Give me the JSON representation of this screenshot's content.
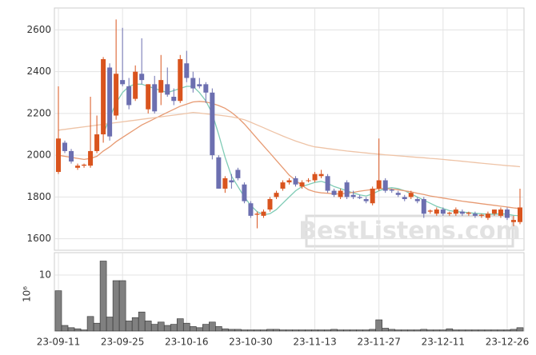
{
  "chart_data": {
    "type": "candlestick",
    "watermark": "BestListens.com",
    "categories": [
      "23-09-11",
      null,
      null,
      null,
      null,
      null,
      null,
      null,
      null,
      null,
      "23-09-25",
      null,
      null,
      null,
      null,
      null,
      null,
      null,
      null,
      null,
      "23-10-16",
      null,
      null,
      null,
      null,
      null,
      null,
      null,
      null,
      null,
      "23-10-30",
      null,
      null,
      null,
      null,
      null,
      null,
      null,
      null,
      null,
      "23-11-13",
      null,
      null,
      null,
      null,
      null,
      null,
      null,
      null,
      null,
      "23-11-27",
      null,
      null,
      null,
      null,
      null,
      null,
      null,
      null,
      null,
      "23-12-11",
      null,
      null,
      null,
      null,
      null,
      null,
      null,
      null,
      null,
      "23-12-26",
      null,
      null
    ],
    "open": [
      1920,
      2060,
      2020,
      1940,
      1950,
      1950,
      2020,
      2100,
      2420,
      2190,
      2360,
      2330,
      2270,
      2390,
      2220,
      2340,
      2300,
      2340,
      2280,
      2260,
      2440,
      2370,
      2340,
      2340,
      2300,
      1990,
      1840,
      1880,
      1930,
      1860,
      1770,
      1715,
      1710,
      1740,
      1800,
      1840,
      1870,
      1890,
      1850,
      1880,
      1880,
      1900,
      1900,
      1830,
      1800,
      1870,
      1810,
      1800,
      1790,
      1770,
      1840,
      1880,
      1835,
      1820,
      1800,
      1800,
      1790,
      1790,
      1730,
      1720,
      1740,
      1720,
      1720,
      1730,
      1720,
      1720,
      1710,
      1700,
      1720,
      1710,
      1740,
      1680,
      1680
    ],
    "high": [
      2330,
      2070,
      2030,
      1960,
      1960,
      2280,
      2190,
      2470,
      2440,
      2650,
      2610,
      2370,
      2430,
      2560,
      2340,
      2380,
      2480,
      2420,
      2320,
      2480,
      2500,
      2400,
      2370,
      2350,
      2320,
      2000,
      1900,
      1910,
      1940,
      1870,
      1780,
      1730,
      1740,
      1800,
      1830,
      1880,
      1890,
      1900,
      1880,
      1890,
      1920,
      1930,
      1910,
      1840,
      1840,
      1880,
      1830,
      1810,
      1800,
      1850,
      2080,
      1890,
      1840,
      1830,
      1810,
      1830,
      1800,
      1800,
      1740,
      1750,
      1750,
      1730,
      1750,
      1740,
      1730,
      1730,
      1720,
      1730,
      1740,
      1750,
      1750,
      1710,
      1840
    ],
    "low": [
      1910,
      2010,
      1960,
      1930,
      1940,
      1940,
      2010,
      2060,
      2070,
      2170,
      2330,
      2220,
      2260,
      2340,
      2200,
      2200,
      2240,
      2280,
      2240,
      2250,
      2350,
      2300,
      2320,
      2250,
      1980,
      1840,
      1820,
      1840,
      1880,
      1770,
      1700,
      1650,
      1700,
      1730,
      1790,
      1830,
      1860,
      1850,
      1840,
      1870,
      1870,
      1890,
      1820,
      1800,
      1790,
      1790,
      1790,
      1790,
      1770,
      1760,
      1830,
      1820,
      1820,
      1800,
      1780,
      1790,
      1770,
      1700,
      1720,
      1710,
      1710,
      1710,
      1710,
      1710,
      1710,
      1700,
      1700,
      1690,
      1710,
      1700,
      1690,
      1660,
      1670
    ],
    "close": [
      2080,
      2020,
      1970,
      1950,
      1955,
      2020,
      2100,
      2460,
      2090,
      2390,
      2340,
      2240,
      2400,
      2360,
      2340,
      2210,
      2360,
      2290,
      2260,
      2460,
      2370,
      2320,
      2330,
      2300,
      2000,
      1840,
      1890,
      1870,
      1890,
      1780,
      1710,
      1720,
      1730,
      1790,
      1820,
      1870,
      1880,
      1860,
      1870,
      1880,
      1910,
      1910,
      1830,
      1810,
      1830,
      1800,
      1800,
      1795,
      1780,
      1840,
      1880,
      1830,
      1830,
      1810,
      1790,
      1820,
      1780,
      1720,
      1735,
      1740,
      1720,
      1725,
      1740,
      1720,
      1725,
      1710,
      1715,
      1720,
      1740,
      1740,
      1700,
      1690,
      1750
    ],
    "up_color": "#d9541e",
    "down_color": "#6c6fb0",
    "ylim": [
      1545,
      2705
    ],
    "yticks": [
      1600,
      1800,
      2000,
      2200,
      2400,
      2600
    ],
    "grid": true,
    "moving_averages": [
      {
        "color": "#7fcbb5",
        "values": [
          null,
          null,
          null,
          null,
          null,
          null,
          null,
          2100,
          2180,
          2250,
          2300,
          2330,
          2340,
          2340,
          2330,
          2320,
          2310,
          2300,
          2310,
          2320,
          2330,
          2330,
          2300,
          2260,
          2200,
          2100,
          1990,
          1900,
          1850,
          1800,
          1760,
          1730,
          1715,
          1720,
          1740,
          1770,
          1800,
          1830,
          1850,
          1860,
          1870,
          1875,
          1865,
          1850,
          1840,
          1830,
          1820,
          1810,
          1805,
          1815,
          1830,
          1840,
          1845,
          1840,
          1830,
          1815,
          1800,
          1785,
          1770,
          1755,
          1745,
          1735,
          1730,
          1728,
          1725,
          1722,
          1720,
          1718,
          1718,
          1720,
          1718,
          1712,
          1710
        ]
      },
      {
        "color": "#e79a72",
        "values": [
          2000,
          1995,
          1990,
          1985,
          1980,
          1985,
          1995,
          2020,
          2040,
          2065,
          2085,
          2105,
          2125,
          2145,
          2160,
          2175,
          2190,
          2205,
          2220,
          2235,
          2245,
          2255,
          2258,
          2255,
          2248,
          2238,
          2225,
          2205,
          2180,
          2150,
          2115,
          2080,
          2045,
          2010,
          1975,
          1940,
          1905,
          1880,
          1855,
          1835,
          1825,
          1820,
          1818,
          1815,
          1815,
          1818,
          1822,
          1828,
          1832,
          1836,
          1840,
          1840,
          1838,
          1835,
          1830,
          1825,
          1818,
          1812,
          1805,
          1800,
          1795,
          1790,
          1785,
          1780,
          1776,
          1772,
          1768,
          1764,
          1760,
          1756,
          1752,
          1748,
          1745
        ]
      },
      {
        "color": "#eec3a6",
        "values": [
          2120,
          2124,
          2128,
          2132,
          2136,
          2140,
          2144,
          2148,
          2152,
          2156,
          2160,
          2164,
          2168,
          2172,
          2176,
          2180,
          2184,
          2188,
          2192,
          2196,
          2200,
          2205,
          2202,
          2198,
          2195,
          2192,
          2188,
          2184,
          2178,
          2170,
          2158,
          2145,
          2132,
          2118,
          2105,
          2092,
          2080,
          2068,
          2058,
          2048,
          2040,
          2036,
          2032,
          2028,
          2024,
          2020,
          2017,
          2014,
          2011,
          2008,
          2005,
          2002,
          2000,
          1997,
          1995,
          1992,
          1990,
          1988,
          1985,
          1983,
          1980,
          1977,
          1974,
          1971,
          1968,
          1965,
          1962,
          1959,
          1956,
          1953,
          1950,
          1948,
          1945
        ]
      }
    ],
    "volume": {
      "ylabel": "10⁶",
      "color": "#808080",
      "ylim": [
        0,
        14
      ],
      "yticks": [
        10
      ],
      "values": [
        7.2,
        1,
        0.6,
        0.4,
        0.2,
        2.6,
        1.4,
        12.5,
        2.5,
        9,
        9,
        1.8,
        2.4,
        3.4,
        1.8,
        1.2,
        1.6,
        1,
        1.2,
        2.2,
        1.4,
        0.8,
        0.6,
        1.2,
        1.6,
        0.8,
        0.4,
        0.3,
        0.3,
        0.2,
        0.2,
        0.2,
        0.2,
        0.3,
        0.3,
        0.2,
        0.2,
        0.2,
        0.2,
        0.2,
        0.2,
        0.2,
        0.2,
        0.3,
        0.2,
        0.2,
        0.2,
        0.2,
        0.2,
        0.3,
        2.0,
        0.5,
        0.3,
        0.2,
        0.2,
        0.2,
        0.2,
        0.3,
        0.2,
        0.2,
        0.2,
        0.4,
        0.2,
        0.2,
        0.2,
        0.2,
        0.2,
        0.2,
        0.2,
        0.2,
        0.2,
        0.3,
        0.6
      ]
    }
  }
}
